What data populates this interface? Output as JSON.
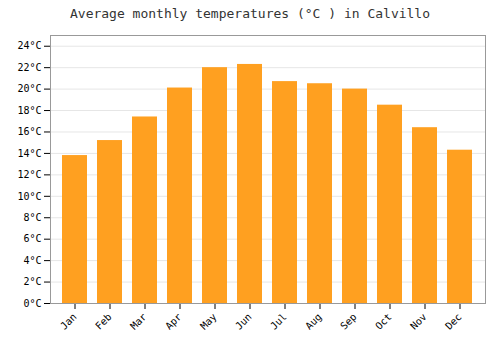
{
  "chart_data": {
    "type": "bar",
    "title": "Average monthly temperatures (°C ) in Calvillo",
    "categories": [
      "Jan",
      "Feb",
      "Mar",
      "Apr",
      "May",
      "Jun",
      "Jul",
      "Aug",
      "Sep",
      "Oct",
      "Nov",
      "Dec"
    ],
    "values": [
      13.8,
      15.2,
      17.4,
      20.1,
      22.0,
      22.3,
      20.7,
      20.5,
      20.0,
      18.5,
      16.4,
      14.3
    ],
    "color": "#FFA020",
    "ylim": [
      0,
      25
    ],
    "yticks": [
      {
        "value": 0,
        "label": "0°C"
      },
      {
        "value": 2,
        "label": "2°C"
      },
      {
        "value": 4,
        "label": "4°C"
      },
      {
        "value": 6,
        "label": "6°C"
      },
      {
        "value": 8,
        "label": "8°C"
      },
      {
        "value": 10,
        "label": "10°C"
      },
      {
        "value": 12,
        "label": "12°C"
      },
      {
        "value": 14,
        "label": "14°C"
      },
      {
        "value": 16,
        "label": "16°C"
      },
      {
        "value": 18,
        "label": "18°C"
      },
      {
        "value": 20,
        "label": "20°C"
      },
      {
        "value": 22,
        "label": "22°C"
      },
      {
        "value": 24,
        "label": "24°C"
      }
    ],
    "grid": true
  }
}
